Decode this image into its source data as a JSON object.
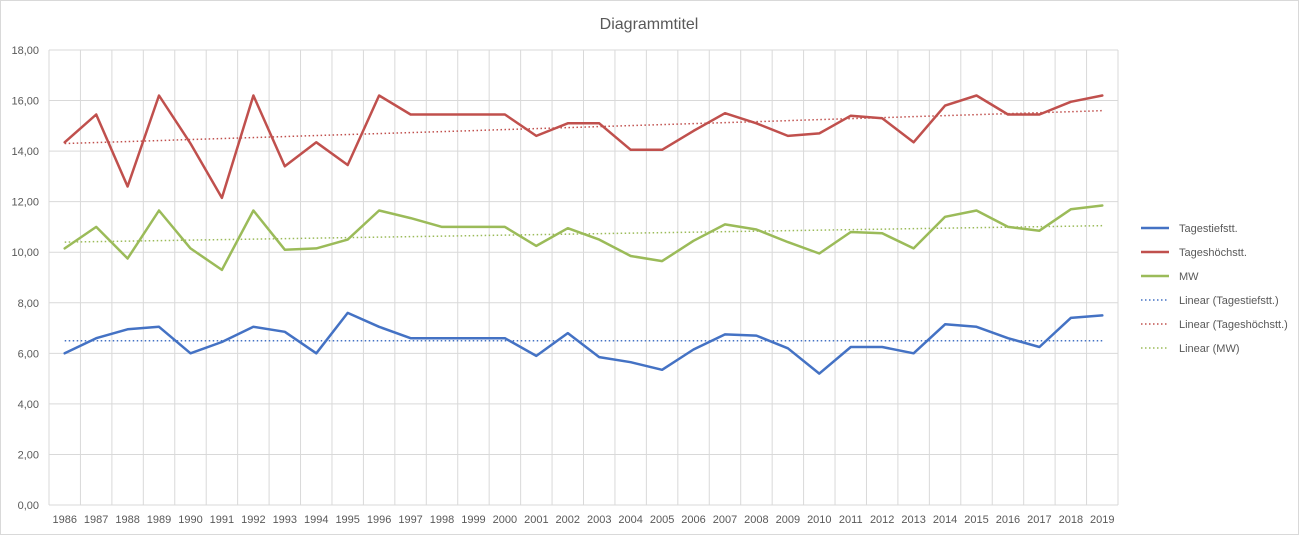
{
  "chart_data": {
    "type": "line",
    "title": "Diagrammtitel",
    "xlabel": "",
    "ylabel": "",
    "ylim": [
      0,
      18
    ],
    "y_ticks": [
      "0,00",
      "2,00",
      "4,00",
      "6,00",
      "8,00",
      "10,00",
      "12,00",
      "14,00",
      "16,00",
      "18,00"
    ],
    "y_tick_values": [
      0,
      2,
      4,
      6,
      8,
      10,
      12,
      14,
      16,
      18
    ],
    "grid": true,
    "legend_position": "right",
    "categories": [
      "1986",
      "1987",
      "1988",
      "1989",
      "1990",
      "1991",
      "1992",
      "1993",
      "1994",
      "1995",
      "1996",
      "1997",
      "1998",
      "1999",
      "2000",
      "2001",
      "2002",
      "2003",
      "2004",
      "2005",
      "2006",
      "2007",
      "2008",
      "2009",
      "2010",
      "2011",
      "2012",
      "2013",
      "2014",
      "2015",
      "2016",
      "2017",
      "2018",
      "2019"
    ],
    "series": [
      {
        "name": "Tagestiefstt.",
        "color": "#4472c4",
        "values": [
          6.0,
          6.6,
          6.95,
          7.05,
          6.0,
          6.45,
          7.05,
          6.85,
          6.0,
          7.6,
          7.05,
          6.6,
          6.6,
          6.6,
          6.6,
          5.9,
          6.8,
          5.85,
          5.65,
          5.35,
          6.15,
          6.75,
          6.7,
          6.2,
          5.2,
          6.25,
          6.25,
          6.0,
          7.15,
          7.05,
          6.6,
          6.25,
          7.4,
          7.5
        ]
      },
      {
        "name": "Tageshöchstt.",
        "color": "#c0504d",
        "values": [
          14.35,
          15.45,
          12.6,
          16.2,
          14.3,
          12.15,
          16.2,
          13.4,
          14.35,
          13.45,
          16.2,
          15.45,
          15.45,
          15.45,
          15.45,
          14.6,
          15.1,
          15.1,
          14.05,
          14.05,
          14.8,
          15.5,
          15.1,
          14.6,
          14.7,
          15.4,
          15.3,
          14.35,
          15.8,
          16.2,
          15.45,
          15.45,
          15.95,
          16.2
        ]
      },
      {
        "name": "MW",
        "color": "#9bbb59",
        "values": [
          10.15,
          11.0,
          9.75,
          11.65,
          10.15,
          9.3,
          11.65,
          10.1,
          10.15,
          10.5,
          11.65,
          11.35,
          11.0,
          11.0,
          11.0,
          10.25,
          10.95,
          10.5,
          9.85,
          9.65,
          10.45,
          11.1,
          10.9,
          10.4,
          9.95,
          10.8,
          10.75,
          10.15,
          11.4,
          11.65,
          11.0,
          10.85,
          11.7,
          11.85
        ]
      }
    ],
    "trendlines": [
      {
        "name": "Linear (Tagestiefstt.)",
        "color": "#4472c4",
        "start": 6.5,
        "end": 6.5
      },
      {
        "name": "Linear (Tageshöchstt.)",
        "color": "#c0504d",
        "start": 14.3,
        "end": 15.6
      },
      {
        "name": "Linear (MW)",
        "color": "#9bbb59",
        "start": 10.4,
        "end": 11.05
      }
    ]
  }
}
